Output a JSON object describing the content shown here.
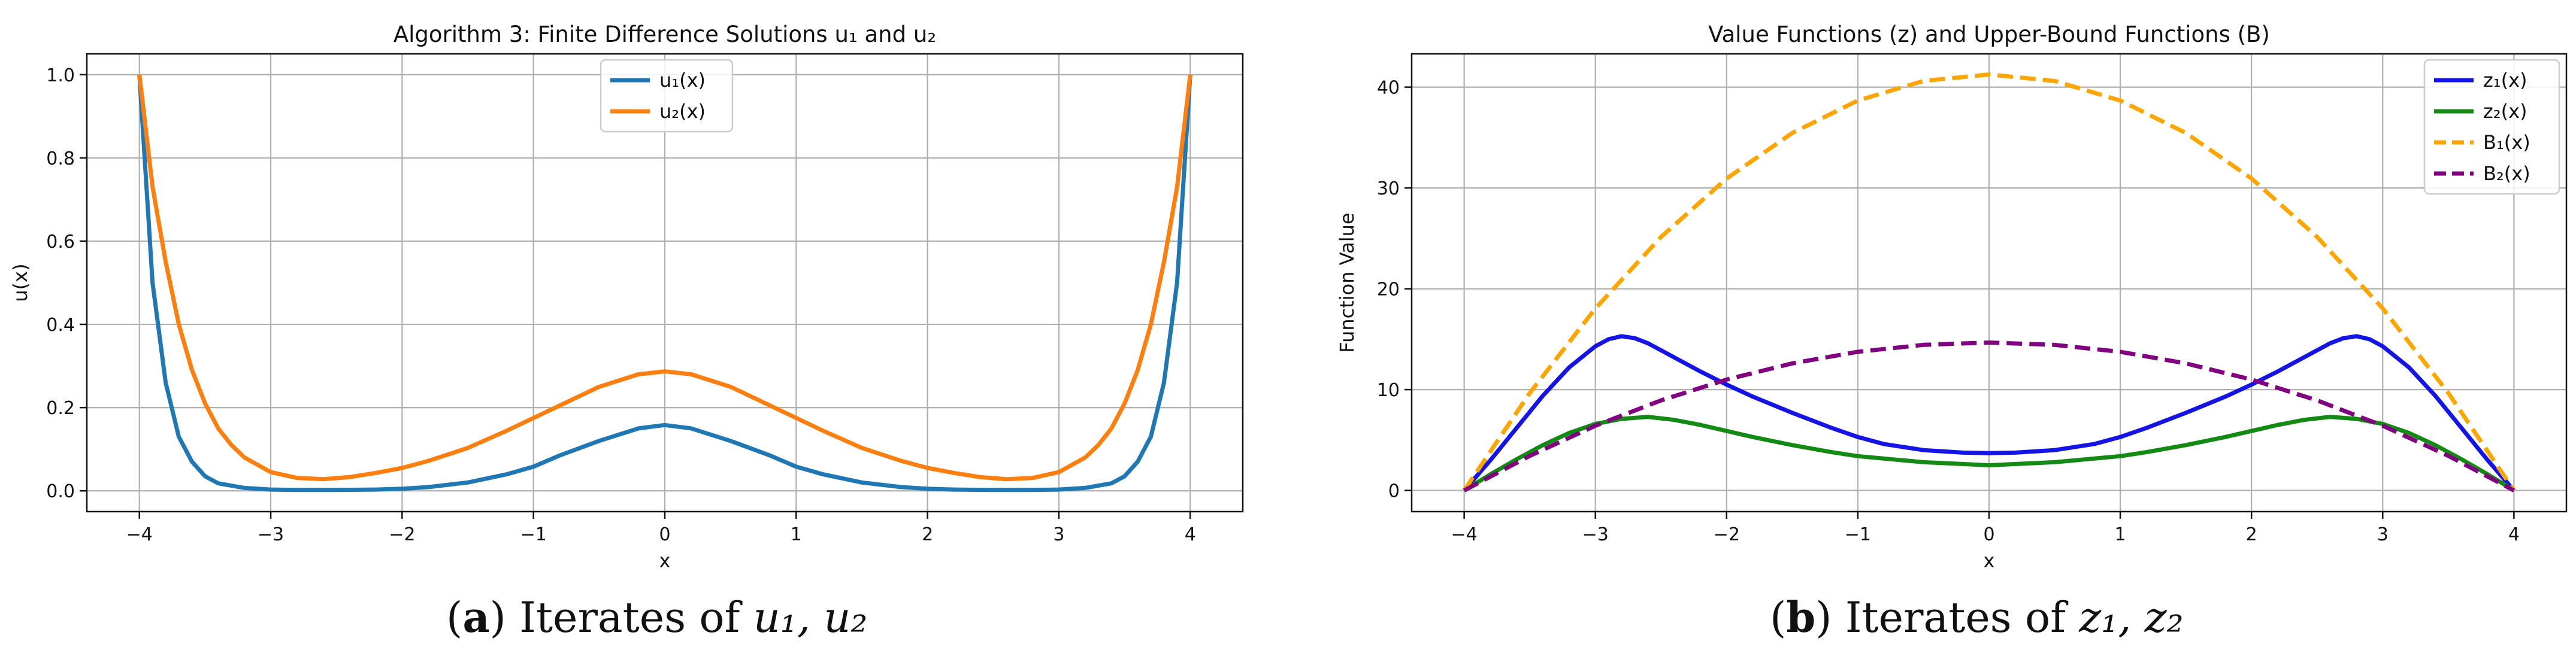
{
  "captions": [
    {
      "letter": "a",
      "text": "Iterates of",
      "math": "u₁, u₂"
    },
    {
      "letter": "b",
      "text": "Iterates of",
      "math": "z₁, z₂"
    }
  ],
  "chart_data": [
    {
      "type": "line",
      "title": "Algorithm 3: Finite Difference Solutions u₁ and u₂",
      "xlabel": "x",
      "ylabel": "u(x)",
      "xlim": [
        -4.4,
        4.4
      ],
      "ylim": [
        -0.05,
        1.05
      ],
      "xticks": [
        -4,
        -3,
        -2,
        -1,
        0,
        1,
        2,
        3,
        4
      ],
      "xtick_labels": [
        "−4",
        "−3",
        "−2",
        "−1",
        "0",
        "1",
        "2",
        "3",
        "4"
      ],
      "yticks": [
        0,
        0.2,
        0.4,
        0.6,
        0.8,
        1.0
      ],
      "ytick_labels": [
        "0.0",
        "0.2",
        "0.4",
        "0.6",
        "0.8",
        "1.0"
      ],
      "grid": true,
      "legend": "upper-center",
      "series": [
        {
          "name": "u₁(x)",
          "color": "#1f77b4",
          "dash": "solid",
          "x": [
            -4,
            -3.9,
            -3.8,
            -3.7,
            -3.6,
            -3.5,
            -3.4,
            -3.2,
            -3.0,
            -2.8,
            -2.5,
            -2.2,
            -2.0,
            -1.8,
            -1.5,
            -1.2,
            -1.0,
            -0.8,
            -0.5,
            -0.2,
            0,
            0.2,
            0.5,
            0.8,
            1.0,
            1.2,
            1.5,
            1.8,
            2.0,
            2.2,
            2.5,
            2.8,
            3.0,
            3.2,
            3.4,
            3.5,
            3.6,
            3.7,
            3.8,
            3.9,
            4
          ],
          "y": [
            1.0,
            0.5,
            0.26,
            0.13,
            0.07,
            0.035,
            0.018,
            0.007,
            0.003,
            0.002,
            0.002,
            0.003,
            0.005,
            0.009,
            0.02,
            0.04,
            0.058,
            0.085,
            0.12,
            0.15,
            0.158,
            0.15,
            0.12,
            0.085,
            0.058,
            0.04,
            0.02,
            0.009,
            0.005,
            0.003,
            0.002,
            0.002,
            0.003,
            0.007,
            0.018,
            0.035,
            0.07,
            0.13,
            0.26,
            0.5,
            1.0
          ]
        },
        {
          "name": "u₂(x)",
          "color": "#ff7f0e",
          "dash": "solid",
          "x": [
            -4,
            -3.9,
            -3.8,
            -3.7,
            -3.6,
            -3.5,
            -3.4,
            -3.3,
            -3.2,
            -3.0,
            -2.8,
            -2.6,
            -2.4,
            -2.2,
            -2.0,
            -1.8,
            -1.5,
            -1.2,
            -1.0,
            -0.8,
            -0.5,
            -0.2,
            0,
            0.2,
            0.5,
            0.8,
            1.0,
            1.2,
            1.5,
            1.8,
            2.0,
            2.2,
            2.4,
            2.6,
            2.8,
            3.0,
            3.2,
            3.3,
            3.4,
            3.5,
            3.6,
            3.7,
            3.8,
            3.9,
            4
          ],
          "y": [
            1.0,
            0.73,
            0.55,
            0.4,
            0.29,
            0.21,
            0.15,
            0.11,
            0.08,
            0.045,
            0.031,
            0.028,
            0.033,
            0.043,
            0.055,
            0.072,
            0.103,
            0.145,
            0.175,
            0.205,
            0.25,
            0.28,
            0.287,
            0.28,
            0.25,
            0.205,
            0.175,
            0.145,
            0.103,
            0.072,
            0.055,
            0.043,
            0.033,
            0.028,
            0.031,
            0.045,
            0.08,
            0.11,
            0.15,
            0.21,
            0.29,
            0.4,
            0.55,
            0.73,
            1.0
          ]
        }
      ]
    },
    {
      "type": "line",
      "title": "Value Functions (z) and Upper-Bound Functions (B)",
      "xlabel": "x",
      "ylabel": "Function Value",
      "xlim": [
        -4.4,
        4.4
      ],
      "ylim": [
        -2.1,
        43.3
      ],
      "xticks": [
        -4,
        -3,
        -2,
        -1,
        0,
        1,
        2,
        3,
        4
      ],
      "xtick_labels": [
        "−4",
        "−3",
        "−2",
        "−1",
        "0",
        "1",
        "2",
        "3",
        "4"
      ],
      "yticks": [
        0,
        10,
        20,
        30,
        40
      ],
      "ytick_labels": [
        "0",
        "10",
        "20",
        "30",
        "40"
      ],
      "grid": true,
      "legend": "upper-right",
      "series": [
        {
          "name": "z₁(x)",
          "color": "#1414e6",
          "dash": "solid",
          "x": [
            -4,
            -3.8,
            -3.6,
            -3.4,
            -3.2,
            -3.0,
            -2.9,
            -2.8,
            -2.7,
            -2.6,
            -2.4,
            -2.2,
            -2.0,
            -1.8,
            -1.5,
            -1.2,
            -1.0,
            -0.8,
            -0.5,
            -0.2,
            0,
            0.2,
            0.5,
            0.8,
            1.0,
            1.2,
            1.5,
            1.8,
            2.0,
            2.2,
            2.4,
            2.6,
            2.7,
            2.8,
            2.9,
            3.0,
            3.2,
            3.4,
            3.6,
            3.8,
            4
          ],
          "y": [
            0,
            3.0,
            6.2,
            9.4,
            12.2,
            14.3,
            15.0,
            15.3,
            15.1,
            14.6,
            13.2,
            11.8,
            10.5,
            9.3,
            7.7,
            6.2,
            5.3,
            4.6,
            4.0,
            3.75,
            3.7,
            3.75,
            4.0,
            4.6,
            5.3,
            6.2,
            7.7,
            9.3,
            10.5,
            11.8,
            13.2,
            14.6,
            15.1,
            15.3,
            15.0,
            14.3,
            12.2,
            9.4,
            6.2,
            3.0,
            0
          ]
        },
        {
          "name": "z₂(x)",
          "color": "#138a13",
          "dash": "solid",
          "x": [
            -4,
            -3.8,
            -3.6,
            -3.4,
            -3.2,
            -3.0,
            -2.8,
            -2.6,
            -2.4,
            -2.2,
            -2.0,
            -1.8,
            -1.5,
            -1.2,
            -1.0,
            -0.5,
            0,
            0.5,
            1.0,
            1.2,
            1.5,
            1.8,
            2.0,
            2.2,
            2.4,
            2.6,
            2.8,
            3.0,
            3.2,
            3.4,
            3.6,
            3.8,
            4
          ],
          "y": [
            0,
            1.6,
            3.1,
            4.5,
            5.7,
            6.6,
            7.1,
            7.3,
            7.0,
            6.5,
            5.9,
            5.3,
            4.5,
            3.8,
            3.4,
            2.8,
            2.5,
            2.8,
            3.4,
            3.8,
            4.5,
            5.3,
            5.9,
            6.5,
            7.0,
            7.3,
            7.1,
            6.6,
            5.7,
            4.5,
            3.1,
            1.6,
            0
          ]
        },
        {
          "name": "B₁(x)",
          "color": "#ffa500",
          "dash": "dashed",
          "x": [
            -4,
            -3.5,
            -3,
            -2.5,
            -2,
            -1.5,
            -1,
            -0.5,
            0,
            0.5,
            1,
            1.5,
            2,
            2.5,
            3,
            3.5,
            4
          ],
          "y": [
            0,
            9.67,
            18.05,
            25.14,
            30.94,
            35.45,
            38.67,
            40.61,
            41.25,
            40.61,
            38.67,
            35.45,
            30.94,
            25.14,
            18.05,
            9.67,
            0
          ]
        },
        {
          "name": "B₂(x)",
          "color": "#800080",
          "dash": "dashed",
          "x": [
            -4,
            -3.5,
            -3,
            -2.5,
            -2,
            -1.5,
            -1,
            -0.5,
            0,
            0.5,
            1,
            1.5,
            2,
            2.5,
            3,
            3.5,
            4
          ],
          "y": [
            0,
            3.43,
            6.42,
            8.93,
            11.0,
            12.6,
            13.75,
            14.44,
            14.67,
            14.44,
            13.75,
            12.6,
            11.0,
            8.93,
            6.42,
            3.43,
            0
          ]
        }
      ]
    }
  ]
}
